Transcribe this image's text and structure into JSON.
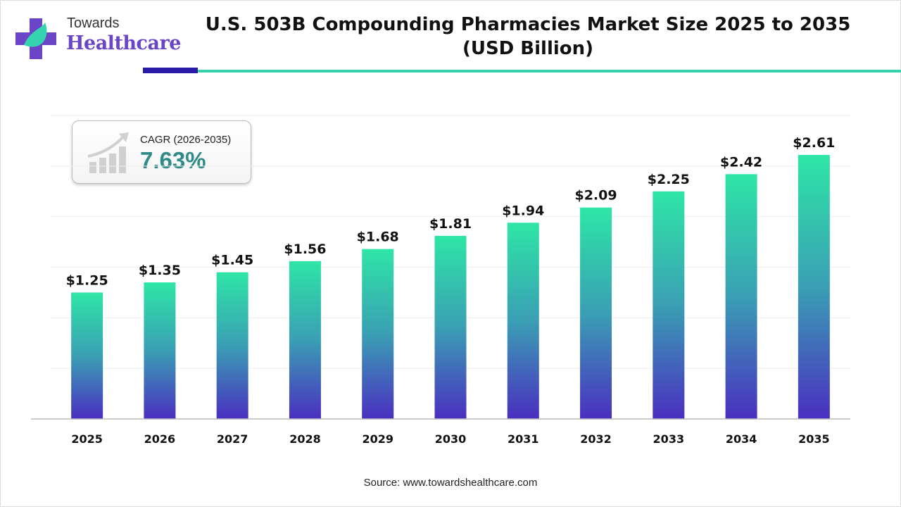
{
  "brand": {
    "line1": "Towards",
    "line2": "Healthcare"
  },
  "colors": {
    "bar_top": "#2ee6a6",
    "bar_mid": "#3a9fb4",
    "bar_bottom": "#4a2fc0",
    "cagr": "#2e8b87",
    "accent_dark": "#2a1aa8",
    "accent_teal": "#35d3b0"
  },
  "cagr": {
    "label": "CAGR (2026-2035)",
    "value": "7.63%"
  },
  "source": "Source: www.towardshealthcare.com",
  "chart_data": {
    "type": "bar",
    "title": "U.S. 503B Compounding Pharmacies Market Size 2025 to 2035",
    "subtitle": "(USD Billion)",
    "categories": [
      "2025",
      "2026",
      "2027",
      "2028",
      "2029",
      "2030",
      "2031",
      "2032",
      "2033",
      "2034",
      "2035"
    ],
    "values": [
      1.25,
      1.35,
      1.45,
      1.56,
      1.68,
      1.81,
      1.94,
      2.09,
      2.25,
      2.42,
      2.61
    ],
    "labels": [
      "$1.25",
      "$1.35",
      "$1.45",
      "$1.56",
      "$1.68",
      "$1.81",
      "$1.94",
      "$2.09",
      "$2.25",
      "$2.42",
      "$2.61"
    ],
    "xlabel": "",
    "ylabel": "",
    "ylim": [
      0,
      3
    ],
    "grid": true,
    "gridStep": 0.5
  }
}
